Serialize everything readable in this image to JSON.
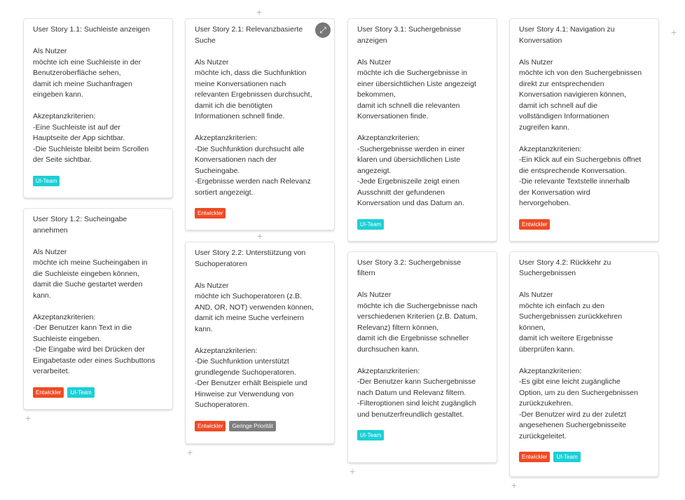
{
  "colors": {
    "entwickler": "#f04a24",
    "ui_team": "#1ccfd6",
    "priority": "#7e7e7e"
  },
  "add_icon": "+",
  "cards": [
    {
      "title": "User Story 1.1: Suchleiste anzeigen",
      "body": "Als Nutzer\nmöchte ich eine Suchleiste in der\nBenutzeroberfläche sehen,\ndamit ich meine Suchanfragen\neingeben kann.\n\nAkzeptanzkriterien:\n-Eine Suchleiste ist auf der\nHauptseite der App sichtbar.\n-Die Suchleiste bleibt beim Scrollen\nder Seite sichtbar.",
      "tags": [
        "UI-Team"
      ]
    },
    {
      "title": "User Story 1.2: Sucheingabe\nannehmen",
      "body": "Als Nutzer\nmöchte ich meine Sucheingaben in\ndie Suchleiste eingeben können,\ndamit die Suche gestartet werden\nkann.\n\nAkzeptanzkriterien:\n-Der Benutzer kann Text in die\nSuchleiste eingeben.\n-Die Eingabe wird bei Drücken der\nEingabetaste oder eines Suchbuttons\nverarbeitet.",
      "tags": [
        "Entwickler",
        "UI-Team"
      ]
    },
    {
      "title": "User Story 2.1: Relevanzbasierte\nSuche",
      "body": "Als Nutzer\nmöchte ich, dass die Suchfunktion\nmeine Konversationen nach\nrelevanten Ergebnissen durchsucht,\ndamit ich die benötigten\nInformationen schnell finde.\n\nAkzeptanzkriterien:\n-Die Suchfunktion durchsucht alle\nKonversationen nach der\nSucheingabe.\n-Ergebnisse werden nach Relevanz\nsortiert angezeigt.",
      "tags": [
        "Entwickler"
      ]
    },
    {
      "title": "User Story 2.2: Unterstützung von\nSuchoperatoren",
      "body": "Als Nutzer\nmöchte ich Suchoperatoren (z.B.\nAND, OR, NOT) verwenden können,\ndamit ich meine Suche verfeinern\nkann.\n\nAkzeptanzkriterien:\n-Die Suchfunktion unterstützt\ngrundlegende Suchoperatoren.\n-Der Benutzer erhält Beispiele und\nHinweise zur Verwendung von\nSuchoperatoren.",
      "tags": [
        "Entwickler",
        "Geringe Priorität"
      ]
    },
    {
      "title": "User Story 3.1: Suchergebnisse\nanzeigen",
      "body": "Als Nutzer\nmöchte ich die Suchergebnisse in\neiner übersichtlichen Liste angezeigt\nbekommen,\ndamit ich schnell die relevanten\nKonversationen finde.\n\nAkzeptanzkriterien:\n-Suchergebnisse werden in einer\nklaren und übersichtlichen Liste\nangezeigt.\n-Jede Ergebniszeile zeigt einen\nAusschnitt der gefundenen\nKonversation und das Datum an.",
      "tags": [
        "UI-Team"
      ]
    },
    {
      "title": "User Story 3.2: Suchergebnisse\nfiltern",
      "body": "Als Nutzer\nmöchte ich die Suchergebnisse nach\nverschiedenen Kriterien (z.B. Datum,\nRelevanz) filtern können,\ndamit ich die Ergebnisse schneller\ndurchsuchen kann.\n\nAkzeptanzkriterien:\n-Der Benutzer kann Suchergebnisse\nnach Datum und Relevanz filtern.\n-Filteroptionen sind leicht zugänglich\nund benutzerfreundlich gestaltet.",
      "tags": [
        "UI-Team"
      ]
    },
    {
      "title": "User Story 4.1: Navigation zu\nKonversation",
      "body": "Als Nutzer\nmöchte ich von den Suchergebnissen\ndirekt zur entsprechenden\nKonversation navigieren können,\ndamit ich schnell auf die\nvollständigen Informationen\nzugreifen kann.\n\nAkzeptanzkriterien:\n-Ein Klick auf ein Suchergebnis öffnet\ndie entsprechende Konversation.\n-Die relevante Textstelle innerhalb\nder Konversation wird\nhervorgehoben.",
      "tags": [
        "Entwickler"
      ]
    },
    {
      "title": "User Story 4.2: Rückkehr zu\nSuchergebnissen",
      "body": "Als Nutzer\nmöchte ich einfach zu den\nSuchergebnissen zurückkehren\nkönnen,\ndamit ich weitere Ergebnisse\nüberprüfen kann.\n\nAkzeptanzkriterien:\n-Es gibt eine leicht zugängliche\nOption, um zu den Suchergebnissen\nzurückzukehren.\n-Der Benutzer wird zu der zuletzt\nangesehenen Suchergebnisseite\nzurückgeleitet.",
      "tags": [
        "Entwickler",
        "UI-Team"
      ]
    }
  ]
}
